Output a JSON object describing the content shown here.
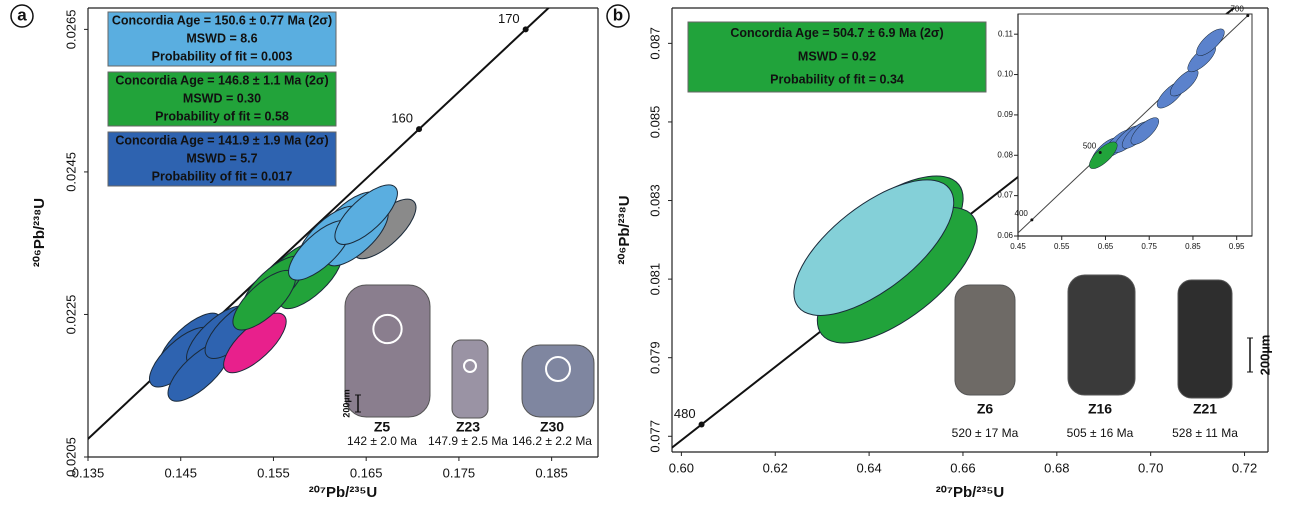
{
  "chart_data": [
    {
      "type": "concordia",
      "panel": "a",
      "xlabel": "²⁰⁷Pb/²³⁵U",
      "ylabel": "²⁰⁶Pb/²³⁸U",
      "xlim": [
        0.135,
        0.19
      ],
      "ylim": [
        0.0205,
        0.0268
      ],
      "xticks": [
        0.135,
        0.145,
        0.155,
        0.165,
        0.175,
        0.185
      ],
      "yticks": [
        0.0205,
        0.0225,
        0.0245,
        0.0265
      ],
      "concordia": {
        "ages": [
          160,
          170
        ],
        "x": [
          0.1707,
          0.1822
        ],
        "y": [
          0.0251,
          0.0265
        ]
      },
      "series": [
        {
          "color": "#2e63b0",
          "x": [
            0.146,
            0.145,
            0.149,
            0.147,
            0.151
          ],
          "y": [
            0.0221,
            0.0219,
            0.0222,
            0.0217,
            0.0223
          ]
        },
        {
          "color": "#e8208c",
          "x": [
            0.153
          ],
          "y": [
            0.0221
          ]
        },
        {
          "color": "#22a33a",
          "x": [
            0.157,
            0.159,
            0.155,
            0.154
          ],
          "y": [
            0.0231,
            0.023,
            0.0229,
            0.0227
          ]
        },
        {
          "color": "#8a8a8a",
          "x": [
            0.167
          ],
          "y": [
            0.0237
          ]
        },
        {
          "color": "#5aaee0",
          "x": [
            0.163,
            0.164,
            0.161,
            0.16,
            0.165
          ],
          "y": [
            0.0238,
            0.0236,
            0.0236,
            0.0234,
            0.0239
          ]
        }
      ],
      "annotations": [
        {
          "color": "#5aaee0",
          "lines": [
            "Concordia Age = 150.6 ± 0.77 Ma (2σ)",
            "MSWD = 8.6",
            "Probability of fit = 0.003"
          ]
        },
        {
          "color": "#22a33a",
          "lines": [
            "Concordia Age = 146.8 ± 1.1 Ma (2σ)",
            "MSWD = 0.30",
            "Probability of fit = 0.58"
          ]
        },
        {
          "color": "#2e63b0",
          "lines": [
            "Concordia Age = 141.9 ± 1.9 Ma (2σ)",
            "MSWD = 5.7",
            "Probability of fit = 0.017"
          ]
        }
      ],
      "grains": [
        {
          "label": "Z5",
          "age": "142 ± 2.0 Ma"
        },
        {
          "label": "Z23",
          "age": "147.9 ± 2.5 Ma"
        },
        {
          "label": "Z30",
          "age": "146.2 ± 2.2 Ma"
        }
      ],
      "scale_bar": "200µm"
    },
    {
      "type": "concordia",
      "panel": "b",
      "xlabel": "²⁰⁷Pb/²³⁵U",
      "ylabel": "²⁰⁶Pb/²³⁸U",
      "xlim": [
        0.598,
        0.725
      ],
      "ylim": [
        0.0766,
        0.0879
      ],
      "xticks": [
        {
          "value": 0.6,
          "label": "0.60"
        },
        0.62,
        0.64,
        0.66,
        0.68,
        {
          "value": 0.7,
          "label": "0.70"
        },
        0.72
      ],
      "yticks": [
        0.077,
        0.079,
        0.081,
        0.083,
        0.085,
        0.087
      ],
      "concordia": {
        "ages": [
          480
        ],
        "x": [
          0.6043
        ],
        "y": [
          0.0773
        ]
      },
      "series": [
        {
          "color": "#21a33b",
          "x": [
            0.643,
            0.646
          ],
          "y": [
            0.0819,
            0.0811
          ]
        },
        {
          "color": "#84d0d8",
          "x": [
            0.641
          ],
          "y": [
            0.0818
          ]
        }
      ],
      "annotations": [
        {
          "color": "#21a33b",
          "lines": [
            "Concordia Age = 504.7 ± 6.9 Ma (2σ)",
            "MSWD = 0.92",
            "Probability of fit = 0.34"
          ]
        }
      ],
      "grains": [
        {
          "label": "Z6",
          "age": "520 ± 17 Ma"
        },
        {
          "label": "Z16",
          "age": "505 ± 16 Ma"
        },
        {
          "label": "Z21",
          "age": "528 ± 11 Ma"
        }
      ],
      "scale_bar": "200µm"
    },
    {
      "type": "concordia",
      "xlim": [
        0.45,
        0.985
      ],
      "ylim": [
        0.06,
        0.115
      ],
      "xticks": [
        0.45,
        0.55,
        0.65,
        0.75,
        0.85,
        0.95
      ],
      "yticks": [
        0.06,
        0.07,
        0.08,
        0.09,
        {
          "value": 0.1,
          "label": "0.10"
        },
        0.11
      ],
      "concordia": {
        "ages": [
          400,
          500,
          700
        ],
        "x": [
          0.4817,
          0.6379,
          0.9754
        ],
        "y": [
          0.064,
          0.0807,
          0.1146
        ]
      },
      "series": [
        {
          "color": "#5b82cc",
          "x": [
            0.65,
            0.68,
            0.7,
            0.72,
            0.74,
            0.8,
            0.83,
            0.87,
            0.89
          ],
          "y": [
            0.081,
            0.083,
            0.084,
            0.085,
            0.086,
            0.095,
            0.098,
            0.104,
            0.108
          ]
        },
        {
          "color": "#21a33b",
          "x": [
            0.645
          ],
          "y": [
            0.08
          ]
        }
      ]
    }
  ]
}
